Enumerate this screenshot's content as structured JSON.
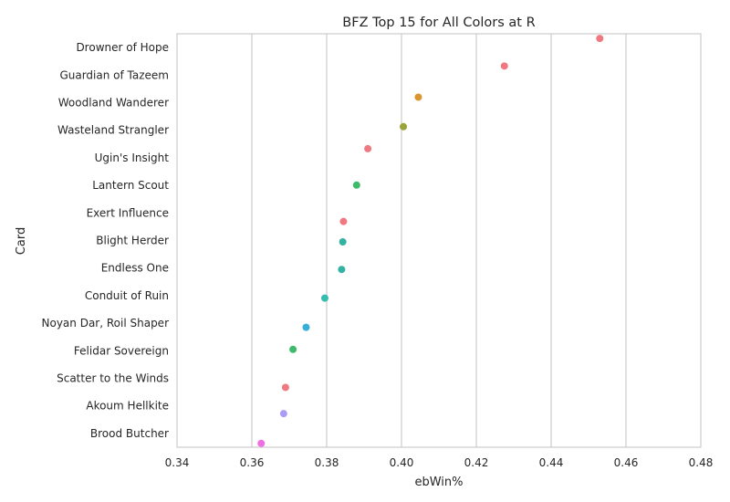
{
  "chart_data": {
    "type": "scatter",
    "title": "BFZ Top 15 for All Colors at R",
    "xlabel": "ebWin%",
    "ylabel": "Card",
    "xlim": [
      0.34,
      0.48
    ],
    "xticks": [
      "0.34",
      "0.36",
      "0.38",
      "0.40",
      "0.42",
      "0.44",
      "0.46",
      "0.48"
    ],
    "grid": "vertical",
    "categories": [
      "Drowner of Hope",
      "Guardian of Tazeem",
      "Woodland Wanderer",
      "Wasteland Strangler",
      "Ugin's Insight",
      "Lantern Scout",
      "Exert Influence",
      "Blight Herder",
      "Endless One",
      "Conduit of Ruin",
      "Noyan Dar, Roil Shaper",
      "Felidar Sovereign",
      "Scatter to the Winds",
      "Akoum Hellkite",
      "Brood Butcher"
    ],
    "values": [
      0.453,
      0.4275,
      0.4045,
      0.4005,
      0.391,
      0.388,
      0.3845,
      0.3843,
      0.384,
      0.3795,
      0.3745,
      0.371,
      0.369,
      0.3685,
      0.3625
    ],
    "jitter": [
      -0.33,
      -0.33,
      -0.2,
      -0.13,
      -0.33,
      -0.01,
      0.31,
      0.05,
      0.05,
      0.09,
      0.15,
      -0.05,
      0.33,
      0.28,
      0.36
    ],
    "colors": [
      "#f07880",
      "#f07880",
      "#d99530",
      "#9aa33a",
      "#f07880",
      "#3dbb6a",
      "#f07880",
      "#35b3a2",
      "#35b3a2",
      "#38bcb0",
      "#36b0d8",
      "#3dbb6a",
      "#f07880",
      "#a99cf5",
      "#ee6fe0"
    ]
  }
}
